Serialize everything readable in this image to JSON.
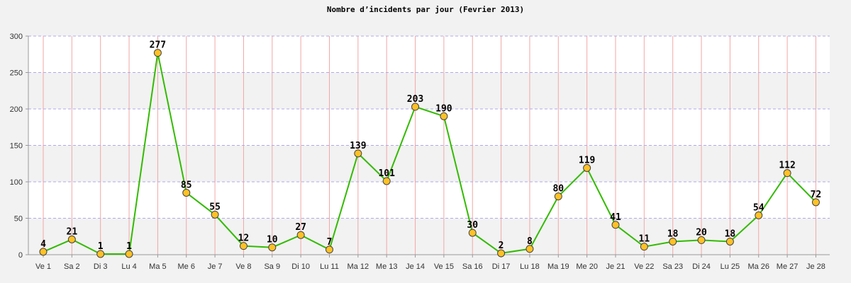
{
  "chart_data": {
    "type": "line",
    "title": "Nombre d’incidents par jour (Fevrier 2013)",
    "xlabel": "",
    "ylabel": "",
    "categories": [
      "Ve 1",
      "Sa 2",
      "Di 3",
      "Lu 4",
      "Ma 5",
      "Me 6",
      "Je 7",
      "Ve 8",
      "Sa 9",
      "Di 10",
      "Lu 11",
      "Ma 12",
      "Me 13",
      "Je 14",
      "Ve 15",
      "Sa 16",
      "Di 17",
      "Lu 18",
      "Ma 19",
      "Me 20",
      "Je 21",
      "Ve 22",
      "Sa 23",
      "Di 24",
      "Lu 25",
      "Ma 26",
      "Me 27",
      "Je 28"
    ],
    "series": [
      {
        "values": [
          4,
          21,
          1,
          1,
          277,
          85,
          55,
          12,
          10,
          27,
          7,
          139,
          101,
          203,
          190,
          30,
          2,
          8,
          80,
          119,
          41,
          11,
          18,
          20,
          18,
          54,
          112,
          72
        ]
      }
    ],
    "ylim": [
      0,
      300
    ],
    "yticks": [
      0,
      50,
      100,
      150,
      200,
      250,
      300
    ],
    "grid": true,
    "legend": "none",
    "colors": {
      "line": "#33bb00",
      "marker_fill": "#ffc125",
      "marker_stroke": "#444444",
      "band_light": "#ffffff",
      "band_dark": "#f2f2f2",
      "hgrid": "#b0a8e8",
      "vgrid": "#f2a6a6",
      "axis": "#999999"
    }
  }
}
